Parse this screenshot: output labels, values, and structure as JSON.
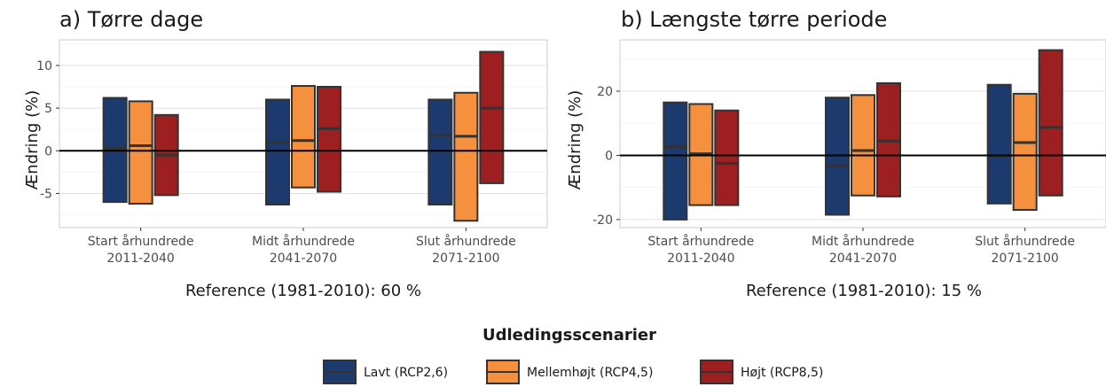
{
  "chart_data": [
    {
      "type": "bar",
      "title": "a) Tørre dage",
      "ylabel": "Ændring (%)",
      "xlabel": "Reference (1981-2010): 60 %",
      "ylim": [
        -9,
        13
      ],
      "yticks": [
        -5,
        0,
        5,
        10
      ],
      "categories": [
        {
          "line1": "Start århundrede",
          "line2": "2011-2040"
        },
        {
          "line1": "Midt århundrede",
          "line2": "2041-2070"
        },
        {
          "line1": "Slut århundrede",
          "line2": "2071-2100"
        }
      ],
      "series": [
        {
          "name": "Lavt (RCP2,6)",
          "color": "#1c3a6e",
          "low": [
            -6.0,
            -6.3,
            -6.3
          ],
          "high": [
            6.2,
            6.0,
            6.0
          ],
          "median": [
            0.3,
            1.0,
            1.8
          ]
        },
        {
          "name": "Mellemhøjt (RCP4,5)",
          "color": "#f5913e",
          "low": [
            -6.2,
            -4.3,
            -8.2
          ],
          "high": [
            5.8,
            7.6,
            6.8
          ],
          "median": [
            0.6,
            1.2,
            1.7
          ]
        },
        {
          "name": "Højt (RCP8,5)",
          "color": "#9e1f1f",
          "low": [
            -5.2,
            -4.8,
            -3.8
          ],
          "high": [
            4.2,
            7.5,
            11.6
          ],
          "median": [
            -0.5,
            2.6,
            5.0
          ]
        }
      ]
    },
    {
      "type": "bar",
      "title": "b) Længste tørre periode",
      "ylabel": "Ændring (%)",
      "xlabel": "Reference (1981-2010): 15 %",
      "ylim": [
        -22.5,
        36
      ],
      "yticks": [
        -20,
        0,
        20
      ],
      "categories": [
        {
          "line1": "Start århundrede",
          "line2": "2011-2040"
        },
        {
          "line1": "Midt århundrede",
          "line2": "2041-2070"
        },
        {
          "line1": "Slut århundrede",
          "line2": "2071-2100"
        }
      ],
      "series": [
        {
          "name": "Lavt (RCP2,6)",
          "color": "#1c3a6e",
          "low": [
            -20.0,
            -18.5,
            -15.0
          ],
          "high": [
            16.5,
            18.0,
            22.0
          ],
          "median": [
            2.7,
            -3.2,
            -0.2
          ]
        },
        {
          "name": "Mellemhøjt (RCP4,5)",
          "color": "#f5913e",
          "low": [
            -15.5,
            -12.5,
            -17.0
          ],
          "high": [
            16.0,
            18.8,
            19.2
          ],
          "median": [
            0.5,
            1.5,
            4.0
          ]
        },
        {
          "name": "Højt (RCP8,5)",
          "color": "#9e1f1f",
          "low": [
            -15.5,
            -12.8,
            -12.5
          ],
          "high": [
            14.0,
            22.5,
            32.8
          ],
          "median": [
            -2.5,
            4.5,
            8.7
          ]
        }
      ]
    }
  ],
  "legend": {
    "title": "Udledingsscenarier",
    "items": [
      {
        "label": "Lavt (RCP2,6)",
        "color": "#1c3a6e"
      },
      {
        "label": "Mellemhøjt (RCP4,5)",
        "color": "#f5913e"
      },
      {
        "label": "Højt (RCP8,5)",
        "color": "#9e1f1f"
      }
    ]
  }
}
